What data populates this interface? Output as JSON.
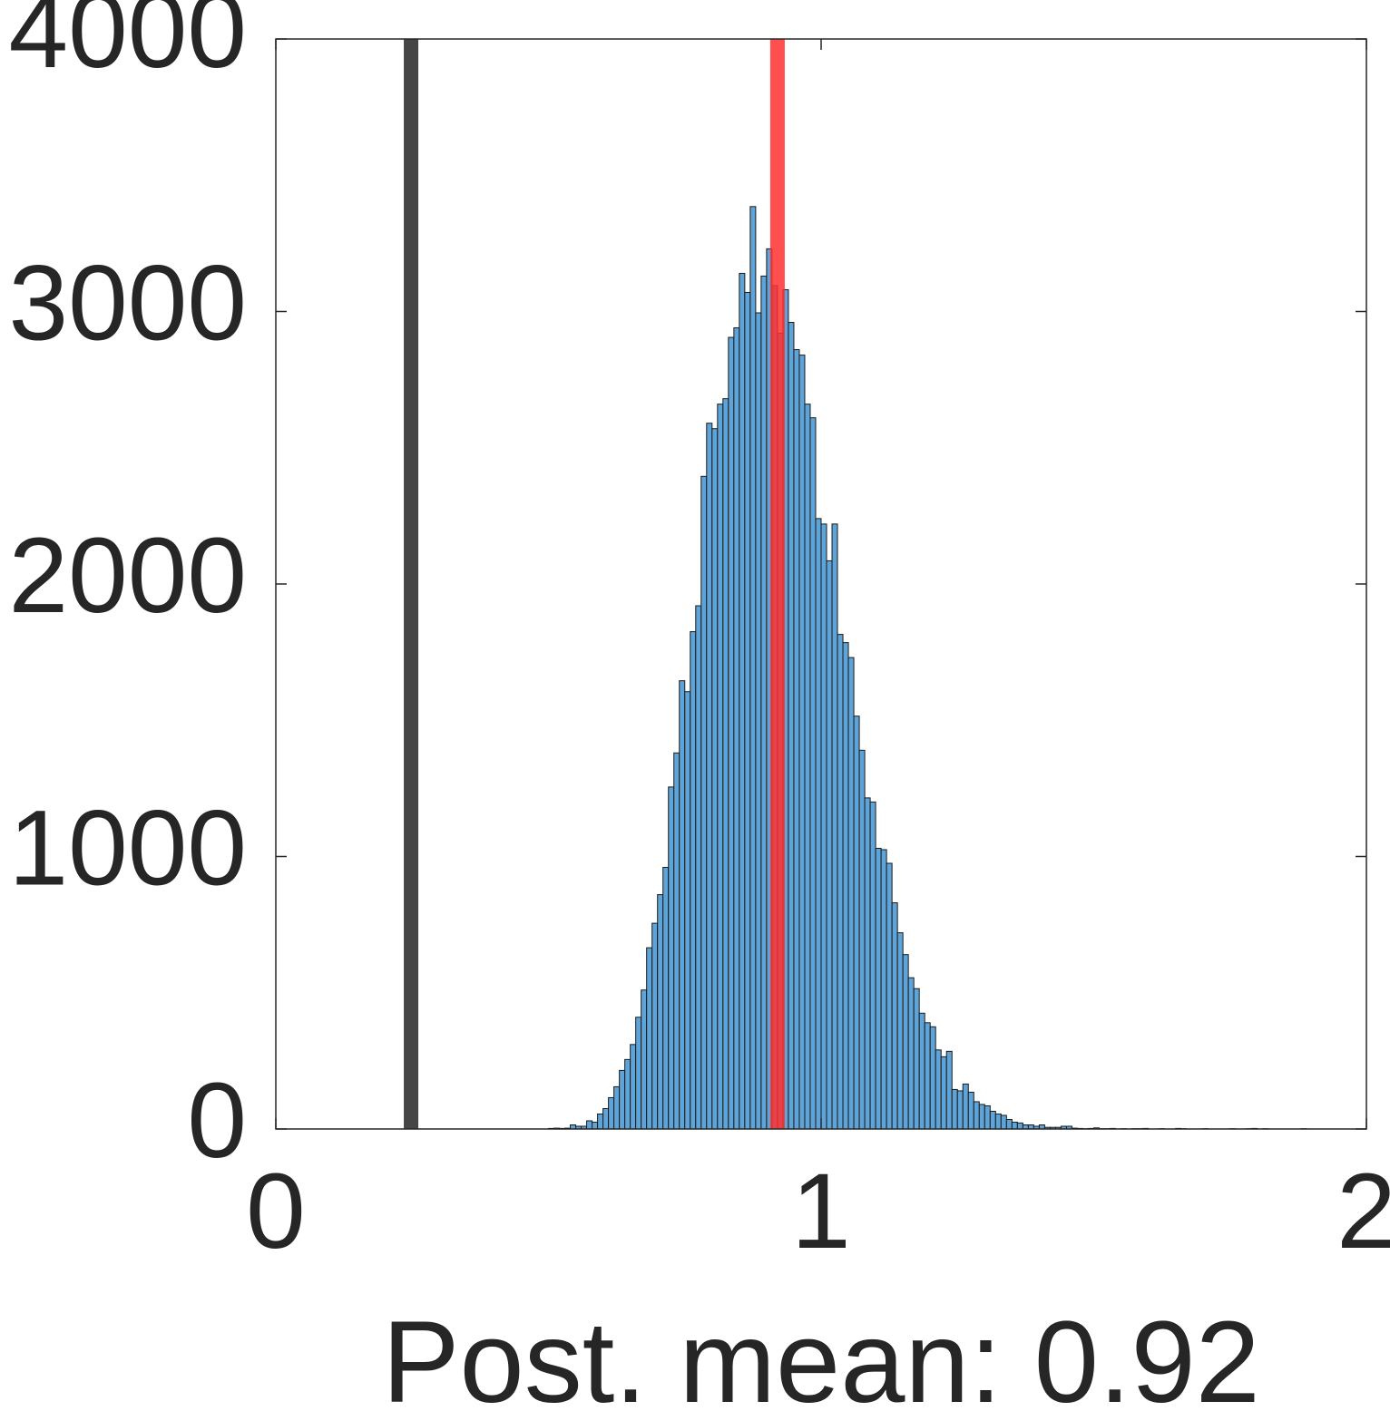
{
  "chart_data": {
    "type": "histogram",
    "xlabel": "Post. mean: 0.92",
    "bins": [
      0.5,
      0.51,
      0.52,
      0.53,
      0.54,
      0.55,
      0.56,
      0.57,
      0.58,
      0.59,
      0.6,
      0.61,
      0.62,
      0.63,
      0.64,
      0.65,
      0.66,
      0.67,
      0.68,
      0.69,
      0.7,
      0.71,
      0.72,
      0.73,
      0.74,
      0.75,
      0.76,
      0.77,
      0.78,
      0.79,
      0.8,
      0.81,
      0.82,
      0.83,
      0.84,
      0.85,
      0.86,
      0.87,
      0.88,
      0.89,
      0.9,
      0.91,
      0.92,
      0.93,
      0.94,
      0.95,
      0.96,
      0.97,
      0.98,
      0.99,
      1.0,
      1.01,
      1.02,
      1.03,
      1.04,
      1.05,
      1.06,
      1.07,
      1.08,
      1.09,
      1.1,
      1.11,
      1.12,
      1.13,
      1.14,
      1.15,
      1.16,
      1.17,
      1.18,
      1.19,
      1.2,
      1.21,
      1.22,
      1.23,
      1.24,
      1.25,
      1.26,
      1.27,
      1.28,
      1.29,
      1.3,
      1.31,
      1.32,
      1.33,
      1.34,
      1.35,
      1.36,
      1.37,
      1.38,
      1.39,
      1.4,
      1.41,
      1.42,
      1.43,
      1.44,
      1.45,
      1.46,
      1.47,
      1.48,
      1.49,
      1.5,
      1.51,
      1.52,
      1.53,
      1.54,
      1.55,
      1.56,
      1.57,
      1.58,
      1.59,
      1.6,
      1.61,
      1.62,
      1.63,
      1.64,
      1.65,
      1.66,
      1.67,
      1.68,
      1.69,
      1.7,
      1.71,
      1.72,
      1.73,
      1.74,
      1.75,
      1.76,
      1.77,
      1.78,
      1.79,
      1.8,
      1.81,
      1.82,
      1.83,
      1.84,
      1.85,
      1.86,
      1.87,
      1.88,
      1.89,
      1.9
    ],
    "values": [
      2,
      3,
      2,
      3,
      15,
      10,
      10,
      30,
      25,
      55,
      75,
      115,
      155,
      215,
      255,
      310,
      410,
      510,
      665,
      755,
      860,
      960,
      1255,
      1380,
      1645,
      1605,
      1825,
      1920,
      2395,
      2590,
      2570,
      2660,
      2680,
      2905,
      2940,
      3140,
      3070,
      3385,
      2995,
      3130,
      3230,
      3095,
      2920,
      3080,
      2960,
      2860,
      2840,
      2660,
      2610,
      2240,
      2220,
      2085,
      2220,
      1815,
      1785,
      1730,
      1515,
      1390,
      1215,
      1200,
      1030,
      1025,
      975,
      830,
      720,
      640,
      555,
      515,
      425,
      390,
      375,
      290,
      265,
      285,
      145,
      140,
      165,
      135,
      100,
      90,
      85,
      65,
      55,
      50,
      35,
      25,
      22,
      15,
      15,
      10,
      15,
      6,
      6,
      6,
      10,
      10,
      3,
      2,
      1,
      2,
      4,
      1,
      1,
      2,
      0,
      1,
      0,
      1,
      1,
      2,
      0,
      0,
      1,
      0,
      0,
      2,
      1,
      0,
      0,
      0,
      1,
      0,
      0,
      0,
      0,
      1,
      0,
      0,
      1,
      2,
      0,
      1,
      0,
      0,
      0,
      0,
      0,
      0,
      1,
      0
    ],
    "color": "#5fa4d8",
    "reference_lines": [
      {
        "value": 0.248,
        "color": "#454545"
      },
      {
        "value": 0.92,
        "color": "#ff3030"
      }
    ],
    "xlim": [
      0,
      2
    ],
    "xticks": [
      0,
      1,
      2
    ],
    "ylim": [
      0,
      4000
    ],
    "yticks": [
      0,
      1000,
      2000,
      3000,
      4000
    ],
    "grid": false
  }
}
